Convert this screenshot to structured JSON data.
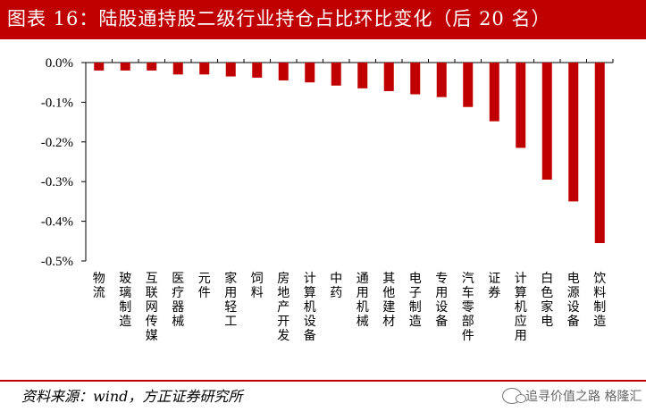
{
  "header": {
    "title": "图表 16：陆股通持股二级行业持仓占比环比变化（后 20 名）",
    "color": "#c00000"
  },
  "footer": {
    "source": "资料来源：wind，方正证券研究所",
    "watermark": "追寻价值之路 格隆汇"
  },
  "chart_data": {
    "type": "bar",
    "categories": [
      "物流",
      "玻璃制造",
      "互联网传媒",
      "医疗器械",
      "元件",
      "家用轻工",
      "饲料",
      "房地产开发",
      "计算机设备",
      "中药",
      "通用机械",
      "其他建材",
      "电子制造",
      "专用设备",
      "汽车零部件",
      "证券",
      "计算机应用",
      "白色家电",
      "电源设备",
      "饮料制造"
    ],
    "values": [
      -0.02,
      -0.02,
      -0.02,
      -0.03,
      -0.03,
      -0.035,
      -0.038,
      -0.045,
      -0.05,
      -0.058,
      -0.065,
      -0.072,
      -0.08,
      -0.087,
      -0.112,
      -0.148,
      -0.215,
      -0.295,
      -0.35,
      -0.455
    ],
    "ylim": [
      -0.5,
      0.0
    ],
    "yticks": [
      "0.0%",
      "-0.1%",
      "-0.2%",
      "-0.3%",
      "-0.4%",
      "-0.5%"
    ],
    "ytick_values": [
      0.0,
      -0.1,
      -0.2,
      -0.3,
      -0.4,
      -0.5
    ],
    "bar_color": "#c00000",
    "grid": false,
    "legend": "none"
  }
}
